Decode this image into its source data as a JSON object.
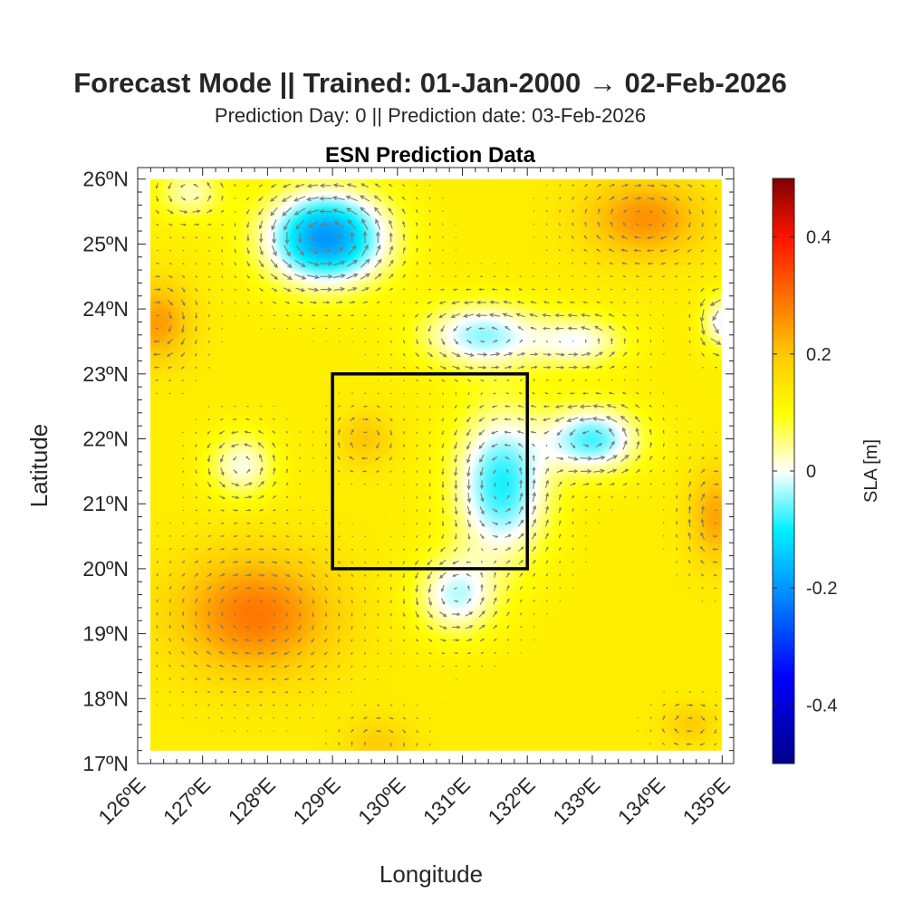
{
  "title": "Forecast Mode || Trained: 01-Jan-2000 → 02-Feb-2026",
  "subtitle": "Prediction Day: 0 || Prediction date: 03-Feb-2026",
  "chart_data": {
    "type": "heatmap",
    "title": "ESN Prediction Data",
    "xlabel": "Longitude",
    "ylabel": "Latitude",
    "xlim": [
      126,
      135
    ],
    "ylim": [
      17,
      26
    ],
    "data_extent": {
      "lon": [
        126.2,
        135
      ],
      "lat": [
        17.2,
        26
      ]
    },
    "xticks": [
      126,
      127,
      128,
      129,
      130,
      131,
      132,
      133,
      134,
      135
    ],
    "xtick_labels": [
      "126ºE",
      "127ºE",
      "128ºE",
      "129ºE",
      "130ºE",
      "131ºE",
      "132ºE",
      "133ºE",
      "134ºE",
      "135ºE"
    ],
    "yticks": [
      17,
      18,
      19,
      20,
      21,
      22,
      23,
      24,
      25,
      26
    ],
    "ytick_labels": [
      "17ºN",
      "18ºN",
      "19ºN",
      "20ºN",
      "21ºN",
      "22ºN",
      "23ºN",
      "24ºN",
      "25ºN",
      "26ºN"
    ],
    "colorbar": {
      "label": "SLA [m]",
      "range": [
        -0.5,
        0.5
      ],
      "ticks": [
        -0.4,
        -0.2,
        0,
        0.2,
        0.4
      ],
      "tick_labels": [
        "-0.4",
        "-0.2",
        "0",
        "0.2",
        "0.4"
      ]
    },
    "background_sla": 0.13,
    "sla_features": [
      {
        "lon": 128.9,
        "lat": 25.1,
        "amp": -0.33,
        "rx": 0.9,
        "ry": 0.7
      },
      {
        "lon": 131.6,
        "lat": 21.3,
        "amp": -0.22,
        "rx": 0.7,
        "ry": 1.1
      },
      {
        "lon": 133.0,
        "lat": 22.0,
        "amp": -0.2,
        "rx": 0.7,
        "ry": 0.5
      },
      {
        "lon": 131.3,
        "lat": 23.6,
        "amp": -0.17,
        "rx": 0.9,
        "ry": 0.5
      },
      {
        "lon": 130.9,
        "lat": 19.6,
        "amp": -0.15,
        "rx": 0.6,
        "ry": 0.6
      },
      {
        "lon": 132.8,
        "lat": 23.5,
        "amp": -0.12,
        "rx": 0.7,
        "ry": 0.4
      },
      {
        "lon": 127.8,
        "lat": 19.3,
        "amp": 0.16,
        "rx": 1.2,
        "ry": 0.9
      },
      {
        "lon": 133.8,
        "lat": 25.4,
        "amp": 0.13,
        "rx": 0.9,
        "ry": 0.6
      },
      {
        "lon": 126.3,
        "lat": 23.8,
        "amp": 0.12,
        "rx": 0.5,
        "ry": 0.6
      },
      {
        "lon": 134.9,
        "lat": 20.8,
        "amp": 0.11,
        "rx": 0.4,
        "ry": 0.7
      },
      {
        "lon": 129.5,
        "lat": 22.0,
        "amp": 0.07,
        "rx": 0.4,
        "ry": 0.4
      },
      {
        "lon": 127.6,
        "lat": 21.6,
        "amp": -0.12,
        "rx": 0.5,
        "ry": 0.5
      },
      {
        "lon": 126.8,
        "lat": 25.8,
        "amp": -0.1,
        "rx": 0.5,
        "ry": 0.4
      },
      {
        "lon": 135.0,
        "lat": 23.8,
        "amp": -0.14,
        "rx": 0.3,
        "ry": 0.4
      },
      {
        "lon": 129.7,
        "lat": 17.3,
        "amp": 0.06,
        "rx": 0.5,
        "ry": 0.4
      },
      {
        "lon": 134.5,
        "lat": 17.6,
        "amp": 0.06,
        "rx": 0.4,
        "ry": 0.3
      }
    ],
    "region_box": {
      "lon": [
        129,
        132
      ],
      "lat": [
        20,
        23
      ]
    }
  }
}
